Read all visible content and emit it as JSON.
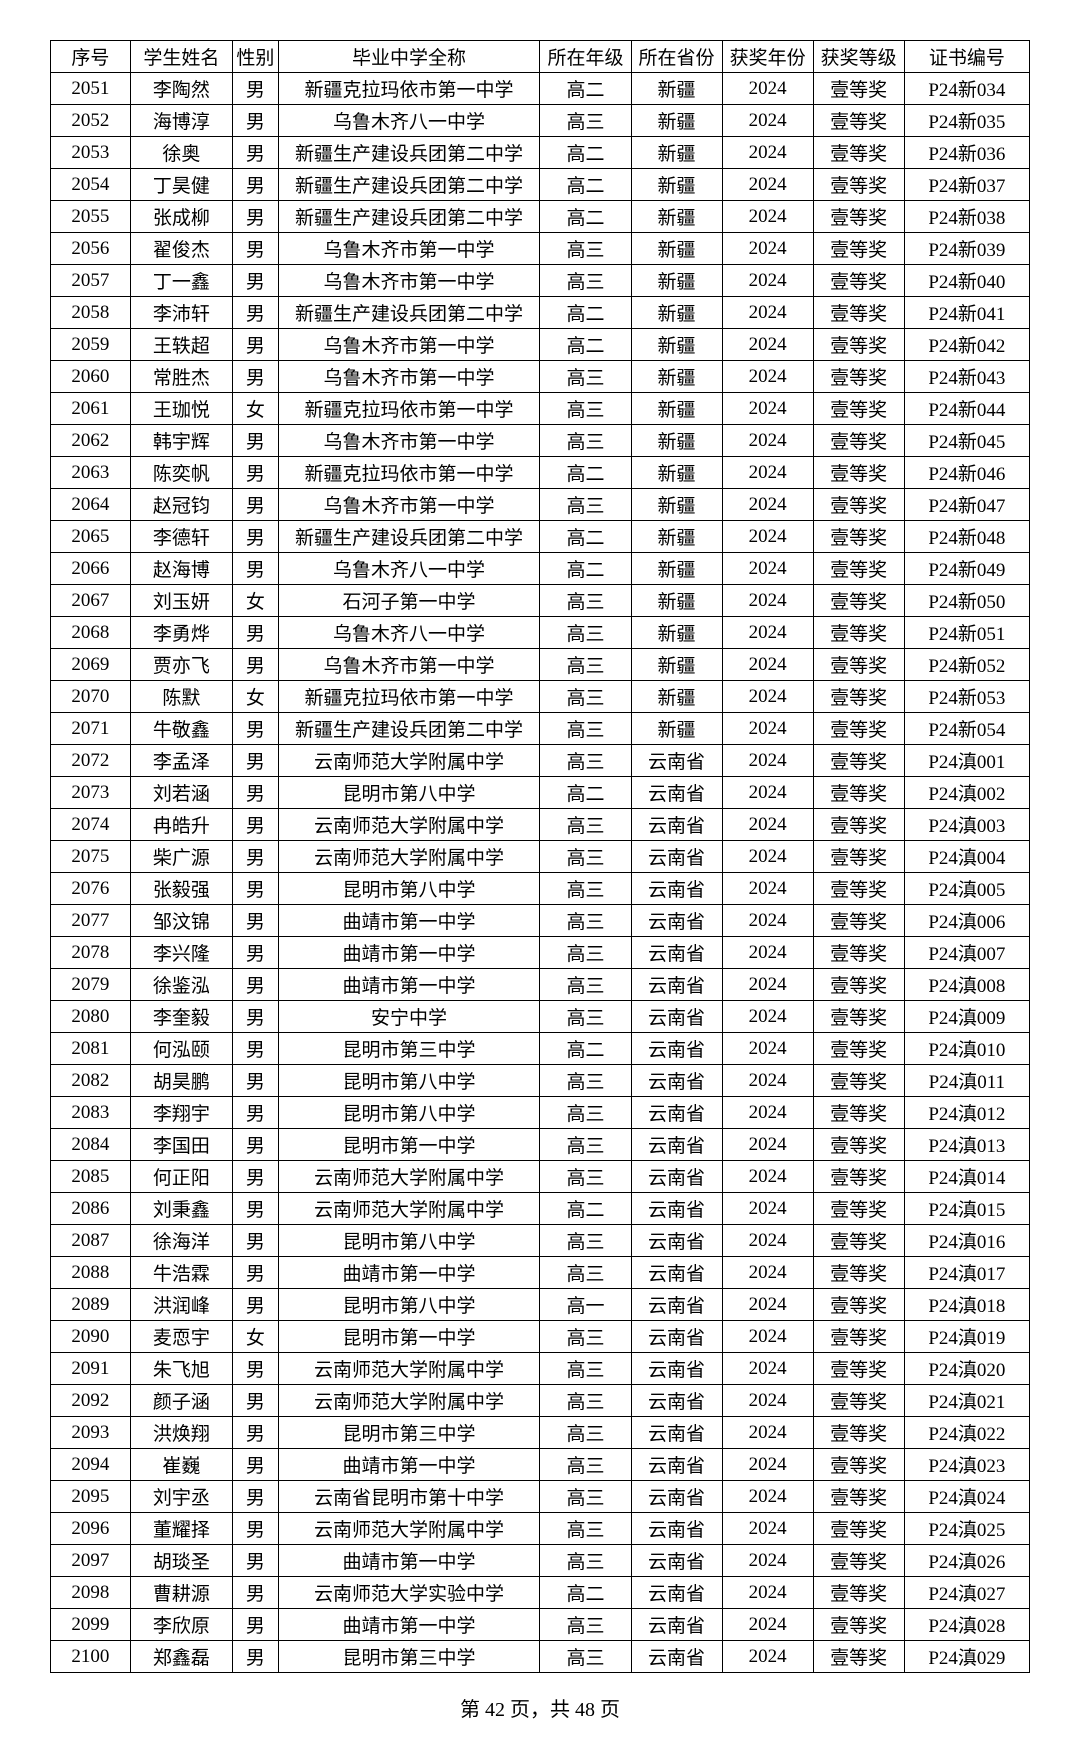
{
  "columns": [
    "序号",
    "学生姓名",
    "性别",
    "毕业中学全称",
    "所在年级",
    "所在省份",
    "获奖年份",
    "获奖等级",
    "证书编号"
  ],
  "rows": [
    [
      "2051",
      "李陶然",
      "男",
      "新疆克拉玛依市第一中学",
      "高二",
      "新疆",
      "2024",
      "壹等奖",
      "P24新034"
    ],
    [
      "2052",
      "海博淳",
      "男",
      "乌鲁木齐八一中学",
      "高三",
      "新疆",
      "2024",
      "壹等奖",
      "P24新035"
    ],
    [
      "2053",
      "徐奥",
      "男",
      "新疆生产建设兵团第二中学",
      "高二",
      "新疆",
      "2024",
      "壹等奖",
      "P24新036"
    ],
    [
      "2054",
      "丁昊健",
      "男",
      "新疆生产建设兵团第二中学",
      "高二",
      "新疆",
      "2024",
      "壹等奖",
      "P24新037"
    ],
    [
      "2055",
      "张成柳",
      "男",
      "新疆生产建设兵团第二中学",
      "高二",
      "新疆",
      "2024",
      "壹等奖",
      "P24新038"
    ],
    [
      "2056",
      "翟俊杰",
      "男",
      "乌鲁木齐市第一中学",
      "高三",
      "新疆",
      "2024",
      "壹等奖",
      "P24新039"
    ],
    [
      "2057",
      "丁一鑫",
      "男",
      "乌鲁木齐市第一中学",
      "高三",
      "新疆",
      "2024",
      "壹等奖",
      "P24新040"
    ],
    [
      "2058",
      "李沛轩",
      "男",
      "新疆生产建设兵团第二中学",
      "高二",
      "新疆",
      "2024",
      "壹等奖",
      "P24新041"
    ],
    [
      "2059",
      "王轶超",
      "男",
      "乌鲁木齐市第一中学",
      "高二",
      "新疆",
      "2024",
      "壹等奖",
      "P24新042"
    ],
    [
      "2060",
      "常胜杰",
      "男",
      "乌鲁木齐市第一中学",
      "高三",
      "新疆",
      "2024",
      "壹等奖",
      "P24新043"
    ],
    [
      "2061",
      "王珈悦",
      "女",
      "新疆克拉玛依市第一中学",
      "高三",
      "新疆",
      "2024",
      "壹等奖",
      "P24新044"
    ],
    [
      "2062",
      "韩宇辉",
      "男",
      "乌鲁木齐市第一中学",
      "高三",
      "新疆",
      "2024",
      "壹等奖",
      "P24新045"
    ],
    [
      "2063",
      "陈奕帆",
      "男",
      "新疆克拉玛依市第一中学",
      "高二",
      "新疆",
      "2024",
      "壹等奖",
      "P24新046"
    ],
    [
      "2064",
      "赵冠钧",
      "男",
      "乌鲁木齐市第一中学",
      "高三",
      "新疆",
      "2024",
      "壹等奖",
      "P24新047"
    ],
    [
      "2065",
      "李德轩",
      "男",
      "新疆生产建设兵团第二中学",
      "高二",
      "新疆",
      "2024",
      "壹等奖",
      "P24新048"
    ],
    [
      "2066",
      "赵海博",
      "男",
      "乌鲁木齐八一中学",
      "高二",
      "新疆",
      "2024",
      "壹等奖",
      "P24新049"
    ],
    [
      "2067",
      "刘玉妍",
      "女",
      "石河子第一中学",
      "高三",
      "新疆",
      "2024",
      "壹等奖",
      "P24新050"
    ],
    [
      "2068",
      "李勇烨",
      "男",
      "乌鲁木齐八一中学",
      "高三",
      "新疆",
      "2024",
      "壹等奖",
      "P24新051"
    ],
    [
      "2069",
      "贾亦飞",
      "男",
      "乌鲁木齐市第一中学",
      "高三",
      "新疆",
      "2024",
      "壹等奖",
      "P24新052"
    ],
    [
      "2070",
      "陈默",
      "女",
      "新疆克拉玛依市第一中学",
      "高三",
      "新疆",
      "2024",
      "壹等奖",
      "P24新053"
    ],
    [
      "2071",
      "牛敬鑫",
      "男",
      "新疆生产建设兵团第二中学",
      "高三",
      "新疆",
      "2024",
      "壹等奖",
      "P24新054"
    ],
    [
      "2072",
      "李孟泽",
      "男",
      "云南师范大学附属中学",
      "高三",
      "云南省",
      "2024",
      "壹等奖",
      "P24滇001"
    ],
    [
      "2073",
      "刘若涵",
      "男",
      "昆明市第八中学",
      "高二",
      "云南省",
      "2024",
      "壹等奖",
      "P24滇002"
    ],
    [
      "2074",
      "冉皓升",
      "男",
      "云南师范大学附属中学",
      "高三",
      "云南省",
      "2024",
      "壹等奖",
      "P24滇003"
    ],
    [
      "2075",
      "柴广源",
      "男",
      "云南师范大学附属中学",
      "高三",
      "云南省",
      "2024",
      "壹等奖",
      "P24滇004"
    ],
    [
      "2076",
      "张毅强",
      "男",
      "昆明市第八中学",
      "高三",
      "云南省",
      "2024",
      "壹等奖",
      "P24滇005"
    ],
    [
      "2077",
      "邹汶锦",
      "男",
      "曲靖市第一中学",
      "高三",
      "云南省",
      "2024",
      "壹等奖",
      "P24滇006"
    ],
    [
      "2078",
      "李兴隆",
      "男",
      "曲靖市第一中学",
      "高三",
      "云南省",
      "2024",
      "壹等奖",
      "P24滇007"
    ],
    [
      "2079",
      "徐鉴泓",
      "男",
      "曲靖市第一中学",
      "高三",
      "云南省",
      "2024",
      "壹等奖",
      "P24滇008"
    ],
    [
      "2080",
      "李奎毅",
      "男",
      "安宁中学",
      "高三",
      "云南省",
      "2024",
      "壹等奖",
      "P24滇009"
    ],
    [
      "2081",
      "何泓颐",
      "男",
      "昆明市第三中学",
      "高二",
      "云南省",
      "2024",
      "壹等奖",
      "P24滇010"
    ],
    [
      "2082",
      "胡昊鹏",
      "男",
      "昆明市第八中学",
      "高三",
      "云南省",
      "2024",
      "壹等奖",
      "P24滇011"
    ],
    [
      "2083",
      "李翔宇",
      "男",
      "昆明市第八中学",
      "高三",
      "云南省",
      "2024",
      "壹等奖",
      "P24滇012"
    ],
    [
      "2084",
      "李国田",
      "男",
      "昆明市第一中学",
      "高三",
      "云南省",
      "2024",
      "壹等奖",
      "P24滇013"
    ],
    [
      "2085",
      "何正阳",
      "男",
      "云南师范大学附属中学",
      "高三",
      "云南省",
      "2024",
      "壹等奖",
      "P24滇014"
    ],
    [
      "2086",
      "刘秉鑫",
      "男",
      "云南师范大学附属中学",
      "高二",
      "云南省",
      "2024",
      "壹等奖",
      "P24滇015"
    ],
    [
      "2087",
      "徐海洋",
      "男",
      "昆明市第八中学",
      "高三",
      "云南省",
      "2024",
      "壹等奖",
      "P24滇016"
    ],
    [
      "2088",
      "牛浩霖",
      "男",
      "曲靖市第一中学",
      "高三",
      "云南省",
      "2024",
      "壹等奖",
      "P24滇017"
    ],
    [
      "2089",
      "洪润峰",
      "男",
      "昆明市第八中学",
      "高一",
      "云南省",
      "2024",
      "壹等奖",
      "P24滇018"
    ],
    [
      "2090",
      "麦恧宇",
      "女",
      "昆明市第一中学",
      "高三",
      "云南省",
      "2024",
      "壹等奖",
      "P24滇019"
    ],
    [
      "2091",
      "朱飞旭",
      "男",
      "云南师范大学附属中学",
      "高三",
      "云南省",
      "2024",
      "壹等奖",
      "P24滇020"
    ],
    [
      "2092",
      "颜子涵",
      "男",
      "云南师范大学附属中学",
      "高三",
      "云南省",
      "2024",
      "壹等奖",
      "P24滇021"
    ],
    [
      "2093",
      "洪焕翔",
      "男",
      "昆明市第三中学",
      "高三",
      "云南省",
      "2024",
      "壹等奖",
      "P24滇022"
    ],
    [
      "2094",
      "崔巍",
      "男",
      "曲靖市第一中学",
      "高三",
      "云南省",
      "2024",
      "壹等奖",
      "P24滇023"
    ],
    [
      "2095",
      "刘宇丞",
      "男",
      "云南省昆明市第十中学",
      "高三",
      "云南省",
      "2024",
      "壹等奖",
      "P24滇024"
    ],
    [
      "2096",
      "董耀择",
      "男",
      "云南师范大学附属中学",
      "高三",
      "云南省",
      "2024",
      "壹等奖",
      "P24滇025"
    ],
    [
      "2097",
      "胡琰圣",
      "男",
      "曲靖市第一中学",
      "高三",
      "云南省",
      "2024",
      "壹等奖",
      "P24滇026"
    ],
    [
      "2098",
      "曹耕源",
      "男",
      "云南师范大学实验中学",
      "高二",
      "云南省",
      "2024",
      "壹等奖",
      "P24滇027"
    ],
    [
      "2099",
      "李欣原",
      "男",
      "曲靖市第一中学",
      "高三",
      "云南省",
      "2024",
      "壹等奖",
      "P24滇028"
    ],
    [
      "2100",
      "郑鑫磊",
      "男",
      "昆明市第三中学",
      "高三",
      "云南省",
      "2024",
      "壹等奖",
      "P24滇029"
    ]
  ],
  "footer": "第 42 页，共 48 页"
}
